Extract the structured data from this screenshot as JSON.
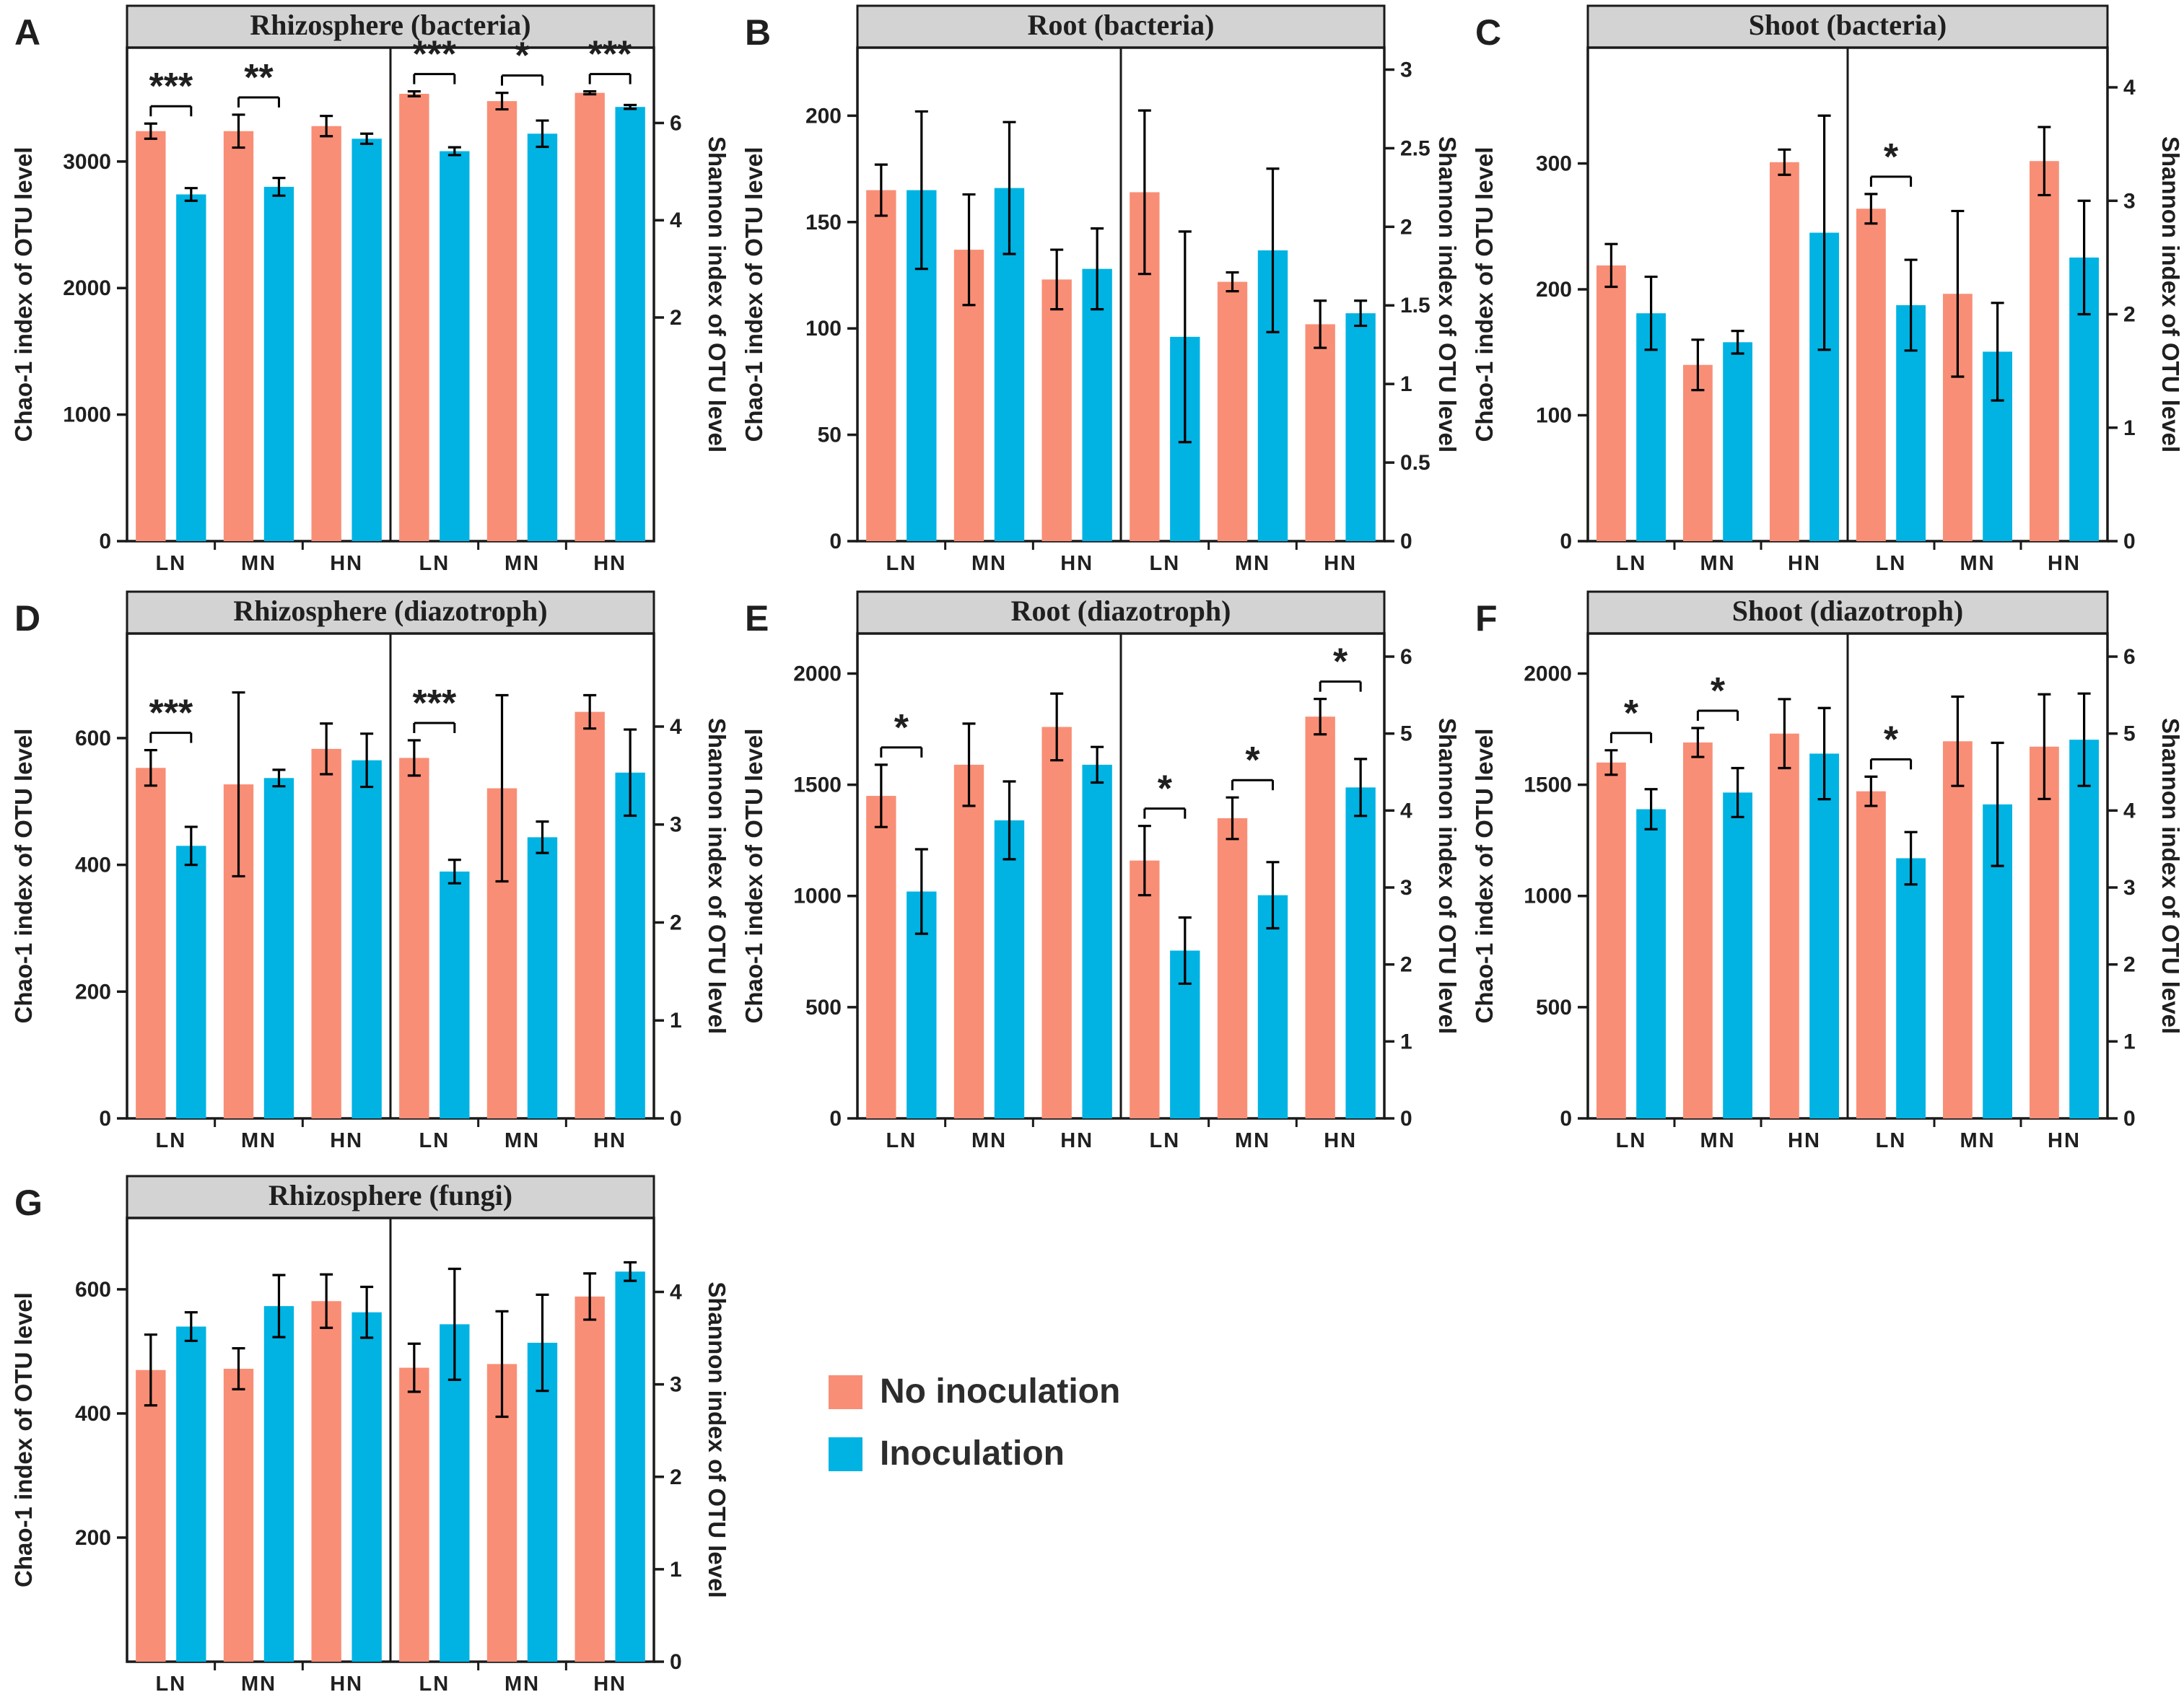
{
  "colors": {
    "no_inoculation": "#F98E76",
    "inoculation": "#00B3E3",
    "header_fill": "#d3d3d3",
    "axis_line": "#1a1a1a",
    "text": "#1f1f1f"
  },
  "legend": {
    "items": [
      {
        "label": "No inoculation",
        "color": "#F98E76"
      },
      {
        "label": "Inoculation",
        "color": "#00B3E3"
      }
    ]
  },
  "chart_data": [
    {
      "type": "bar",
      "panel_letter": "A",
      "title": "Rhizosphere (bacteria)",
      "categories": [
        "LN",
        "MN",
        "HN"
      ],
      "series_names": [
        "No inoculation",
        "Inoculation"
      ],
      "left_axis": {
        "label": "Chao-1 index of OTU level",
        "ticks": [
          0,
          1000,
          2000,
          3000
        ],
        "min": 0,
        "max": 3900
      },
      "right_axis": {
        "label": "Shannon index of OTU level",
        "ticks": [
          2,
          4,
          6
        ],
        "min": -2.6,
        "max": 7.55
      },
      "chao1": {
        "no_inoculation": [
          {
            "value": 3240,
            "err": 60
          },
          {
            "value": 3240,
            "err": 130
          },
          {
            "value": 3280,
            "err": 80
          }
        ],
        "inoculation": [
          {
            "value": 2740,
            "err": 50
          },
          {
            "value": 2800,
            "err": 70
          },
          {
            "value": 3180,
            "err": 40
          }
        ],
        "significance": [
          "***",
          "**",
          null
        ]
      },
      "shannon": {
        "no_inoculation": [
          {
            "value": 6.6,
            "err": 0.05
          },
          {
            "value": 6.45,
            "err": 0.17
          },
          {
            "value": 6.62,
            "err": 0.03
          }
        ],
        "inoculation": [
          {
            "value": 5.42,
            "err": 0.08
          },
          {
            "value": 5.78,
            "err": 0.27
          },
          {
            "value": 6.33,
            "err": 0.04
          }
        ],
        "significance": [
          "***",
          "*",
          "***"
        ]
      }
    },
    {
      "type": "bar",
      "panel_letter": "B",
      "title": "Root (bacteria)",
      "categories": [
        "LN",
        "MN",
        "HN"
      ],
      "series_names": [
        "No inoculation",
        "Inoculation"
      ],
      "left_axis": {
        "label": "Chao-1 index of OTU level",
        "ticks": [
          0,
          50,
          100,
          150,
          200
        ],
        "min": 0,
        "max": 232
      },
      "right_axis": {
        "label": "Shannon index of OTU level",
        "ticks": [
          0,
          0.5,
          1,
          1.5,
          2,
          2.5,
          3
        ],
        "min": 0,
        "max": 3.14
      },
      "chao1": {
        "no_inoculation": [
          {
            "value": 165,
            "err": 12
          },
          {
            "value": 137,
            "err": 26
          },
          {
            "value": 123,
            "err": 14
          }
        ],
        "inoculation": [
          {
            "value": 165,
            "err": 37
          },
          {
            "value": 166,
            "err": 31
          },
          {
            "value": 128,
            "err": 19
          }
        ],
        "significance": [
          null,
          null,
          null
        ]
      },
      "shannon": {
        "no_inoculation": [
          {
            "value": 2.22,
            "err": 0.52
          },
          {
            "value": 1.65,
            "err": 0.06
          },
          {
            "value": 1.38,
            "err": 0.15
          }
        ],
        "inoculation": [
          {
            "value": 1.3,
            "err": 0.67
          },
          {
            "value": 1.85,
            "err": 0.52
          },
          {
            "value": 1.45,
            "err": 0.08
          }
        ],
        "significance": [
          null,
          null,
          null
        ]
      }
    },
    {
      "type": "bar",
      "panel_letter": "C",
      "title": "Shoot (bacteria)",
      "categories": [
        "LN",
        "MN",
        "HN"
      ],
      "series_names": [
        "No inoculation",
        "Inoculation"
      ],
      "left_axis": {
        "label": "Chao-1 index of OTU level",
        "ticks": [
          0,
          100,
          200,
          300
        ],
        "min": 0,
        "max": 392
      },
      "right_axis": {
        "label": "Shannon index of OTU level",
        "ticks": [
          0,
          1,
          2,
          3,
          4
        ],
        "min": 0,
        "max": 4.35
      },
      "chao1": {
        "no_inoculation": [
          {
            "value": 219,
            "err": 17
          },
          {
            "value": 140,
            "err": 20
          },
          {
            "value": 301,
            "err": 10
          }
        ],
        "inoculation": [
          {
            "value": 181,
            "err": 29
          },
          {
            "value": 158,
            "err": 9
          },
          {
            "value": 245,
            "err": 93
          }
        ],
        "significance": [
          null,
          null,
          null
        ]
      },
      "shannon": {
        "no_inoculation": [
          {
            "value": 2.93,
            "err": 0.13
          },
          {
            "value": 2.18,
            "err": 0.73
          },
          {
            "value": 3.35,
            "err": 0.3
          }
        ],
        "inoculation": [
          {
            "value": 2.08,
            "err": 0.4
          },
          {
            "value": 1.67,
            "err": 0.43
          },
          {
            "value": 2.5,
            "err": 0.5
          }
        ],
        "significance": [
          "*",
          null,
          null
        ]
      }
    },
    {
      "type": "bar",
      "panel_letter": "D",
      "title": "Rhizosphere (diazotroph)",
      "categories": [
        "LN",
        "MN",
        "HN"
      ],
      "series_names": [
        "No inoculation",
        "Inoculation"
      ],
      "left_axis": {
        "label": "Chao-1 index of OTU level",
        "ticks": [
          0,
          200,
          400,
          600
        ],
        "min": 0,
        "max": 765
      },
      "right_axis": {
        "label": "Shannon index of OTU level",
        "ticks": [
          0,
          1,
          2,
          3,
          4
        ],
        "min": 0,
        "max": 4.95
      },
      "chao1": {
        "no_inoculation": [
          {
            "value": 553,
            "err": 28
          },
          {
            "value": 527,
            "err": 145
          },
          {
            "value": 583,
            "err": 40
          }
        ],
        "inoculation": [
          {
            "value": 430,
            "err": 30
          },
          {
            "value": 537,
            "err": 13
          },
          {
            "value": 565,
            "err": 42
          }
        ],
        "significance": [
          "***",
          null,
          null
        ]
      },
      "shannon": {
        "no_inoculation": [
          {
            "value": 3.68,
            "err": 0.18
          },
          {
            "value": 3.37,
            "err": 0.95
          },
          {
            "value": 4.15,
            "err": 0.17
          }
        ],
        "inoculation": [
          {
            "value": 2.52,
            "err": 0.12
          },
          {
            "value": 2.87,
            "err": 0.16
          },
          {
            "value": 3.53,
            "err": 0.44
          }
        ],
        "significance": [
          "***",
          null,
          null
        ]
      }
    },
    {
      "type": "bar",
      "panel_letter": "E",
      "title": "Root (diazotroph)",
      "categories": [
        "LN",
        "MN",
        "HN"
      ],
      "series_names": [
        "No inoculation",
        "Inoculation"
      ],
      "left_axis": {
        "label": "Chao-1 index of OTU level",
        "ticks": [
          0,
          500,
          1000,
          1500,
          2000
        ],
        "min": 0,
        "max": 2180
      },
      "right_axis": {
        "label": "Shannon index of OTU level",
        "ticks": [
          0,
          1,
          2,
          3,
          4,
          5,
          6
        ],
        "min": 0,
        "max": 6.3
      },
      "chao1": {
        "no_inoculation": [
          {
            "value": 1450,
            "err": 140
          },
          {
            "value": 1590,
            "err": 185
          },
          {
            "value": 1760,
            "err": 150
          }
        ],
        "inoculation": [
          {
            "value": 1020,
            "err": 190
          },
          {
            "value": 1340,
            "err": 175
          },
          {
            "value": 1590,
            "err": 80
          }
        ],
        "significance": [
          "*",
          null,
          null
        ]
      },
      "shannon": {
        "no_inoculation": [
          {
            "value": 3.35,
            "err": 0.45
          },
          {
            "value": 3.9,
            "err": 0.27
          },
          {
            "value": 5.22,
            "err": 0.23
          }
        ],
        "inoculation": [
          {
            "value": 2.18,
            "err": 0.43
          },
          {
            "value": 2.9,
            "err": 0.43
          },
          {
            "value": 4.3,
            "err": 0.37
          }
        ],
        "significance": [
          "*",
          "*",
          "*"
        ]
      }
    },
    {
      "type": "bar",
      "panel_letter": "F",
      "title": "Shoot (diazotroph)",
      "categories": [
        "LN",
        "MN",
        "HN"
      ],
      "series_names": [
        "No inoculation",
        "Inoculation"
      ],
      "left_axis": {
        "label": "Chao-1 index of OTU level",
        "ticks": [
          0,
          500,
          1000,
          1500,
          2000
        ],
        "min": 0,
        "max": 2180
      },
      "right_axis": {
        "label": "Shannon index of OTU level",
        "ticks": [
          0,
          1,
          2,
          3,
          4,
          5,
          6
        ],
        "min": 0,
        "max": 6.3
      },
      "chao1": {
        "no_inoculation": [
          {
            "value": 1600,
            "err": 55
          },
          {
            "value": 1690,
            "err": 65
          },
          {
            "value": 1730,
            "err": 155
          }
        ],
        "inoculation": [
          {
            "value": 1390,
            "err": 90
          },
          {
            "value": 1465,
            "err": 110
          },
          {
            "value": 1640,
            "err": 205
          }
        ],
        "significance": [
          "*",
          "*",
          null
        ]
      },
      "shannon": {
        "no_inoculation": [
          {
            "value": 4.25,
            "err": 0.19
          },
          {
            "value": 4.9,
            "err": 0.58
          },
          {
            "value": 4.83,
            "err": 0.68
          }
        ],
        "inoculation": [
          {
            "value": 3.38,
            "err": 0.34
          },
          {
            "value": 4.08,
            "err": 0.8
          },
          {
            "value": 4.92,
            "err": 0.6
          }
        ],
        "significance": [
          "*",
          null,
          null
        ]
      }
    },
    {
      "type": "bar",
      "panel_letter": "G",
      "title": "Rhizosphere (fungi)",
      "categories": [
        "LN",
        "MN",
        "HN"
      ],
      "series_names": [
        "No inoculation",
        "Inoculation"
      ],
      "left_axis": {
        "label": "Chao-1 index of OTU level",
        "ticks": [
          200,
          400,
          600
        ],
        "min": 0,
        "max": 715
      },
      "right_axis": {
        "label": "Shannon index of OTU level",
        "ticks": [
          0,
          1,
          2,
          3,
          4
        ],
        "min": 0,
        "max": 4.8
      },
      "chao1": {
        "no_inoculation": [
          {
            "value": 470,
            "err": 57
          },
          {
            "value": 472,
            "err": 33
          },
          {
            "value": 581,
            "err": 43
          }
        ],
        "inoculation": [
          {
            "value": 540,
            "err": 23
          },
          {
            "value": 573,
            "err": 50
          },
          {
            "value": 563,
            "err": 41
          }
        ],
        "significance": [
          null,
          null,
          null
        ]
      },
      "shannon": {
        "no_inoculation": [
          {
            "value": 3.18,
            "err": 0.26
          },
          {
            "value": 3.22,
            "err": 0.57
          },
          {
            "value": 3.95,
            "err": 0.25
          }
        ],
        "inoculation": [
          {
            "value": 3.65,
            "err": 0.6
          },
          {
            "value": 3.45,
            "err": 0.52
          },
          {
            "value": 4.22,
            "err": 0.1
          }
        ],
        "significance": [
          null,
          null,
          null
        ]
      }
    }
  ]
}
